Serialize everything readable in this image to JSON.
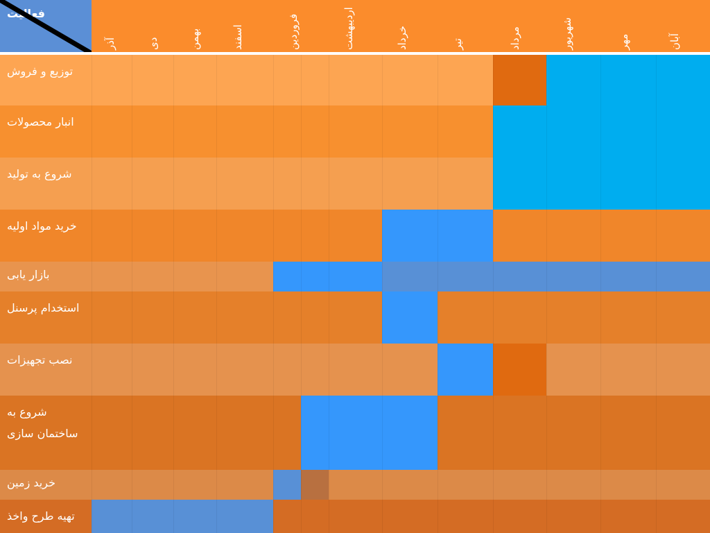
{
  "header": {
    "corner": "فعالیت",
    "corner_color": "#5b8fd6",
    "background": "#fb8c2c",
    "months": [
      "آذر",
      "دی",
      "بهمن",
      "اسفند",
      "فروردین",
      "اردیبهشت",
      "خرداد",
      "تیر",
      "مرداد",
      "شهریور",
      "مهر",
      "آبان"
    ]
  },
  "rows": [
    {
      "label": "توزیع و فروش",
      "color": "#fda552",
      "cells": [
        "#fda552",
        "#fda552",
        "#fda552",
        "#fda552",
        "#fda552",
        "#fda552",
        "#fda552",
        "#fda552",
        "#fda552",
        "#e06a10",
        "#00adef",
        "#00adef",
        "#00adef"
      ]
    },
    {
      "label": "انبار محصولات",
      "color": "#f7902f",
      "cells": [
        "#f7902f",
        "#f7902f",
        "#f7902f",
        "#f7902f",
        "#f7902f",
        "#f7902f",
        "#f7902f",
        "#f7902f",
        "#f7902f",
        "#00adef",
        "#00adef",
        "#00adef",
        "#00adef"
      ]
    },
    {
      "label": "شروع به تولید",
      "color": "#f59f50",
      "cells": [
        "#f59f50",
        "#f59f50",
        "#f59f50",
        "#f59f50",
        "#f59f50",
        "#f59f50",
        "#f59f50",
        "#f59f50",
        "#f59f50",
        "#00adef",
        "#00adef",
        "#00adef",
        "#00adef"
      ]
    },
    {
      "label": "خرید مواد اولیه",
      "color": "#f0862a",
      "cells": [
        "#f0862a",
        "#f0862a",
        "#f0862a",
        "#f0862a",
        "#f0862a",
        "#f0862a",
        "#f0862a",
        "#3597fc",
        "#3597fc",
        "#f0862a",
        "#f0862a",
        "#f0862a",
        "#f0862a"
      ]
    },
    {
      "label": "بازار یابی",
      "color": "#e8944e",
      "cells": [
        "#e8944e",
        "#e8944e",
        "#e8944e",
        "#e8944e",
        "#3597fc",
        "#3597fc",
        "#3597fc",
        "#5890d6",
        "#5890d6",
        "#5890d6",
        "#5890d6",
        "#5890d6",
        "#5890d6"
      ]
    },
    {
      "label": "استخدام پرسنل",
      "color": "#e5802a",
      "cells": [
        "#e5802a",
        "#e5802a",
        "#e5802a",
        "#e5802a",
        "#e5802a",
        "#e5802a",
        "#e5802a",
        "#3597fc",
        "#e5802a",
        "#e5802a",
        "#e5802a",
        "#e5802a",
        "#e5802a"
      ]
    },
    {
      "label": "نصب تجهیزات",
      "color": "#e5924e",
      "cells": [
        "#e5924e",
        "#e5924e",
        "#e5924e",
        "#e5924e",
        "#e5924e",
        "#e5924e",
        "#e5924e",
        "#e5924e",
        "#3597fc",
        "#e06a10",
        "#e5924e",
        "#e5924e",
        "#e5924e"
      ]
    },
    {
      "label": "شروع به ساختمان سازی",
      "color": "#da7423",
      "cells": [
        "#da7423",
        "#da7423",
        "#da7423",
        "#da7423",
        "#da7423",
        "#3597fc",
        "#3597fc",
        "#3597fc",
        "#da7423",
        "#da7423",
        "#da7423",
        "#da7423",
        "#da7423"
      ]
    },
    {
      "label": "خرید زمین",
      "color": "#dc8a48",
      "cells": [
        "#dc8a48",
        "#dc8a48",
        "#dc8a48",
        "#dc8a48",
        "#5890d6",
        "#b87040",
        "#dc8a48",
        "#dc8a48",
        "#dc8a48",
        "#dc8a48",
        "#dc8a48",
        "#dc8a48",
        "#dc8a48"
      ]
    },
    {
      "label": "تهیه طرح واخذ",
      "color": "#d46c24",
      "cells": [
        "#5890d6",
        "#5890d6",
        "#5890d6",
        "#5890d6",
        "#d46c24",
        "#d46c24",
        "#d46c24",
        "#d46c24",
        "#d46c24",
        "#d46c24",
        "#d46c24",
        "#d46c24",
        "#d46c24"
      ]
    }
  ]
}
